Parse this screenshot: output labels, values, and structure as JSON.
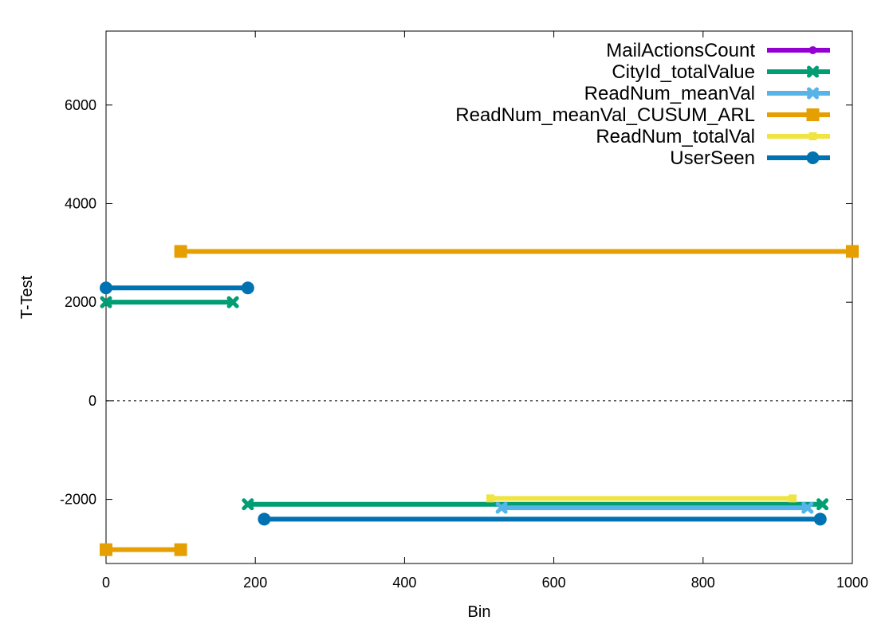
{
  "chart_data": {
    "type": "line",
    "xlabel": "Bin",
    "ylabel": "T-Test",
    "xlim": [
      0,
      1000
    ],
    "ylim": [
      -3300,
      7500
    ],
    "xticks": [
      0,
      200,
      400,
      600,
      800,
      1000
    ],
    "yticks": [
      -2000,
      0,
      2000,
      4000,
      6000
    ],
    "xtick_labels": [
      "0",
      "200",
      "400",
      "600",
      "800",
      "1000"
    ],
    "ytick_labels": [
      "-2000",
      "0",
      "2000",
      "4000",
      "6000"
    ],
    "grid": false,
    "zero_line": "dotted",
    "legend": "top-right",
    "series": [
      {
        "name": "MailActionsCount",
        "color": "#9400d3",
        "marker": "circle-small",
        "segments": []
      },
      {
        "name": "CityId_totalValue",
        "color": "#009e73",
        "marker": "cross",
        "segments": [
          [
            [
              0,
              2000
            ],
            [
              170,
              2000
            ]
          ],
          [
            [
              190,
              -2100
            ],
            [
              960,
              -2100
            ]
          ]
        ]
      },
      {
        "name": "ReadNum_meanVal",
        "color": "#56b4e9",
        "marker": "cross",
        "segments": [
          [
            [
              530,
              -2170
            ],
            [
              940,
              -2170
            ]
          ]
        ]
      },
      {
        "name": "ReadNum_meanVal_CUSUM_ARL",
        "color": "#e69f00",
        "marker": "square",
        "segments": [
          [
            [
              100,
              3030
            ],
            [
              1000,
              3030
            ]
          ],
          [
            [
              0,
              -3020
            ],
            [
              100,
              -3020
            ]
          ]
        ]
      },
      {
        "name": "ReadNum_totalVal",
        "color": "#f0e442",
        "marker": "square-small",
        "segments": [
          [
            [
              515,
              -1980
            ],
            [
              920,
              -1980
            ]
          ]
        ]
      },
      {
        "name": "UserSeen",
        "color": "#0072b2",
        "marker": "circle",
        "segments": [
          [
            [
              0,
              2290
            ],
            [
              190,
              2290
            ]
          ],
          [
            [
              212,
              -2400
            ],
            [
              957,
              -2400
            ]
          ]
        ]
      }
    ]
  }
}
